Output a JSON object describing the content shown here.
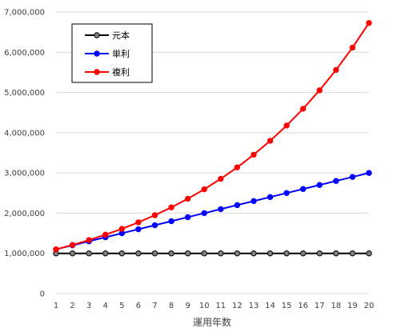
{
  "chart_data": {
    "type": "line",
    "title": "",
    "xlabel": "運用年数",
    "ylabel": "",
    "x": [
      1,
      2,
      3,
      4,
      5,
      6,
      7,
      8,
      9,
      10,
      11,
      12,
      13,
      14,
      15,
      16,
      17,
      18,
      19,
      20
    ],
    "ylim": [
      0,
      7000000
    ],
    "yticks": [
      0,
      1000000,
      2000000,
      3000000,
      4000000,
      5000000,
      6000000,
      7000000
    ],
    "ytick_labels": [
      "0",
      "1,000,000",
      "2,000,000",
      "3,000,000",
      "4,000,000",
      "5,000,000",
      "6,000,000",
      "7,000,000"
    ],
    "grid": "horizontal",
    "legend_position": "top-left",
    "series": [
      {
        "name": "元本",
        "color": "#000000",
        "marker_color": "#808080",
        "values": [
          1000000,
          1000000,
          1000000,
          1000000,
          1000000,
          1000000,
          1000000,
          1000000,
          1000000,
          1000000,
          1000000,
          1000000,
          1000000,
          1000000,
          1000000,
          1000000,
          1000000,
          1000000,
          1000000,
          1000000
        ]
      },
      {
        "name": "単利",
        "color": "#0000FF",
        "marker_color": "#0000FF",
        "values": [
          1100000,
          1200000,
          1300000,
          1400000,
          1500000,
          1600000,
          1700000,
          1800000,
          1900000,
          2000000,
          2100000,
          2200000,
          2300000,
          2400000,
          2500000,
          2600000,
          2700000,
          2800000,
          2900000,
          3000000
        ]
      },
      {
        "name": "複利",
        "color": "#FF0000",
        "marker_color": "#FF0000",
        "values": [
          1100000,
          1210000,
          1331000,
          1464100,
          1610510,
          1771561,
          1948717,
          2143589,
          2357948,
          2593742,
          2853117,
          3138428,
          3452271,
          3797498,
          4177248,
          4594973,
          5054470,
          5559917,
          6115909,
          6727500
        ]
      }
    ]
  }
}
